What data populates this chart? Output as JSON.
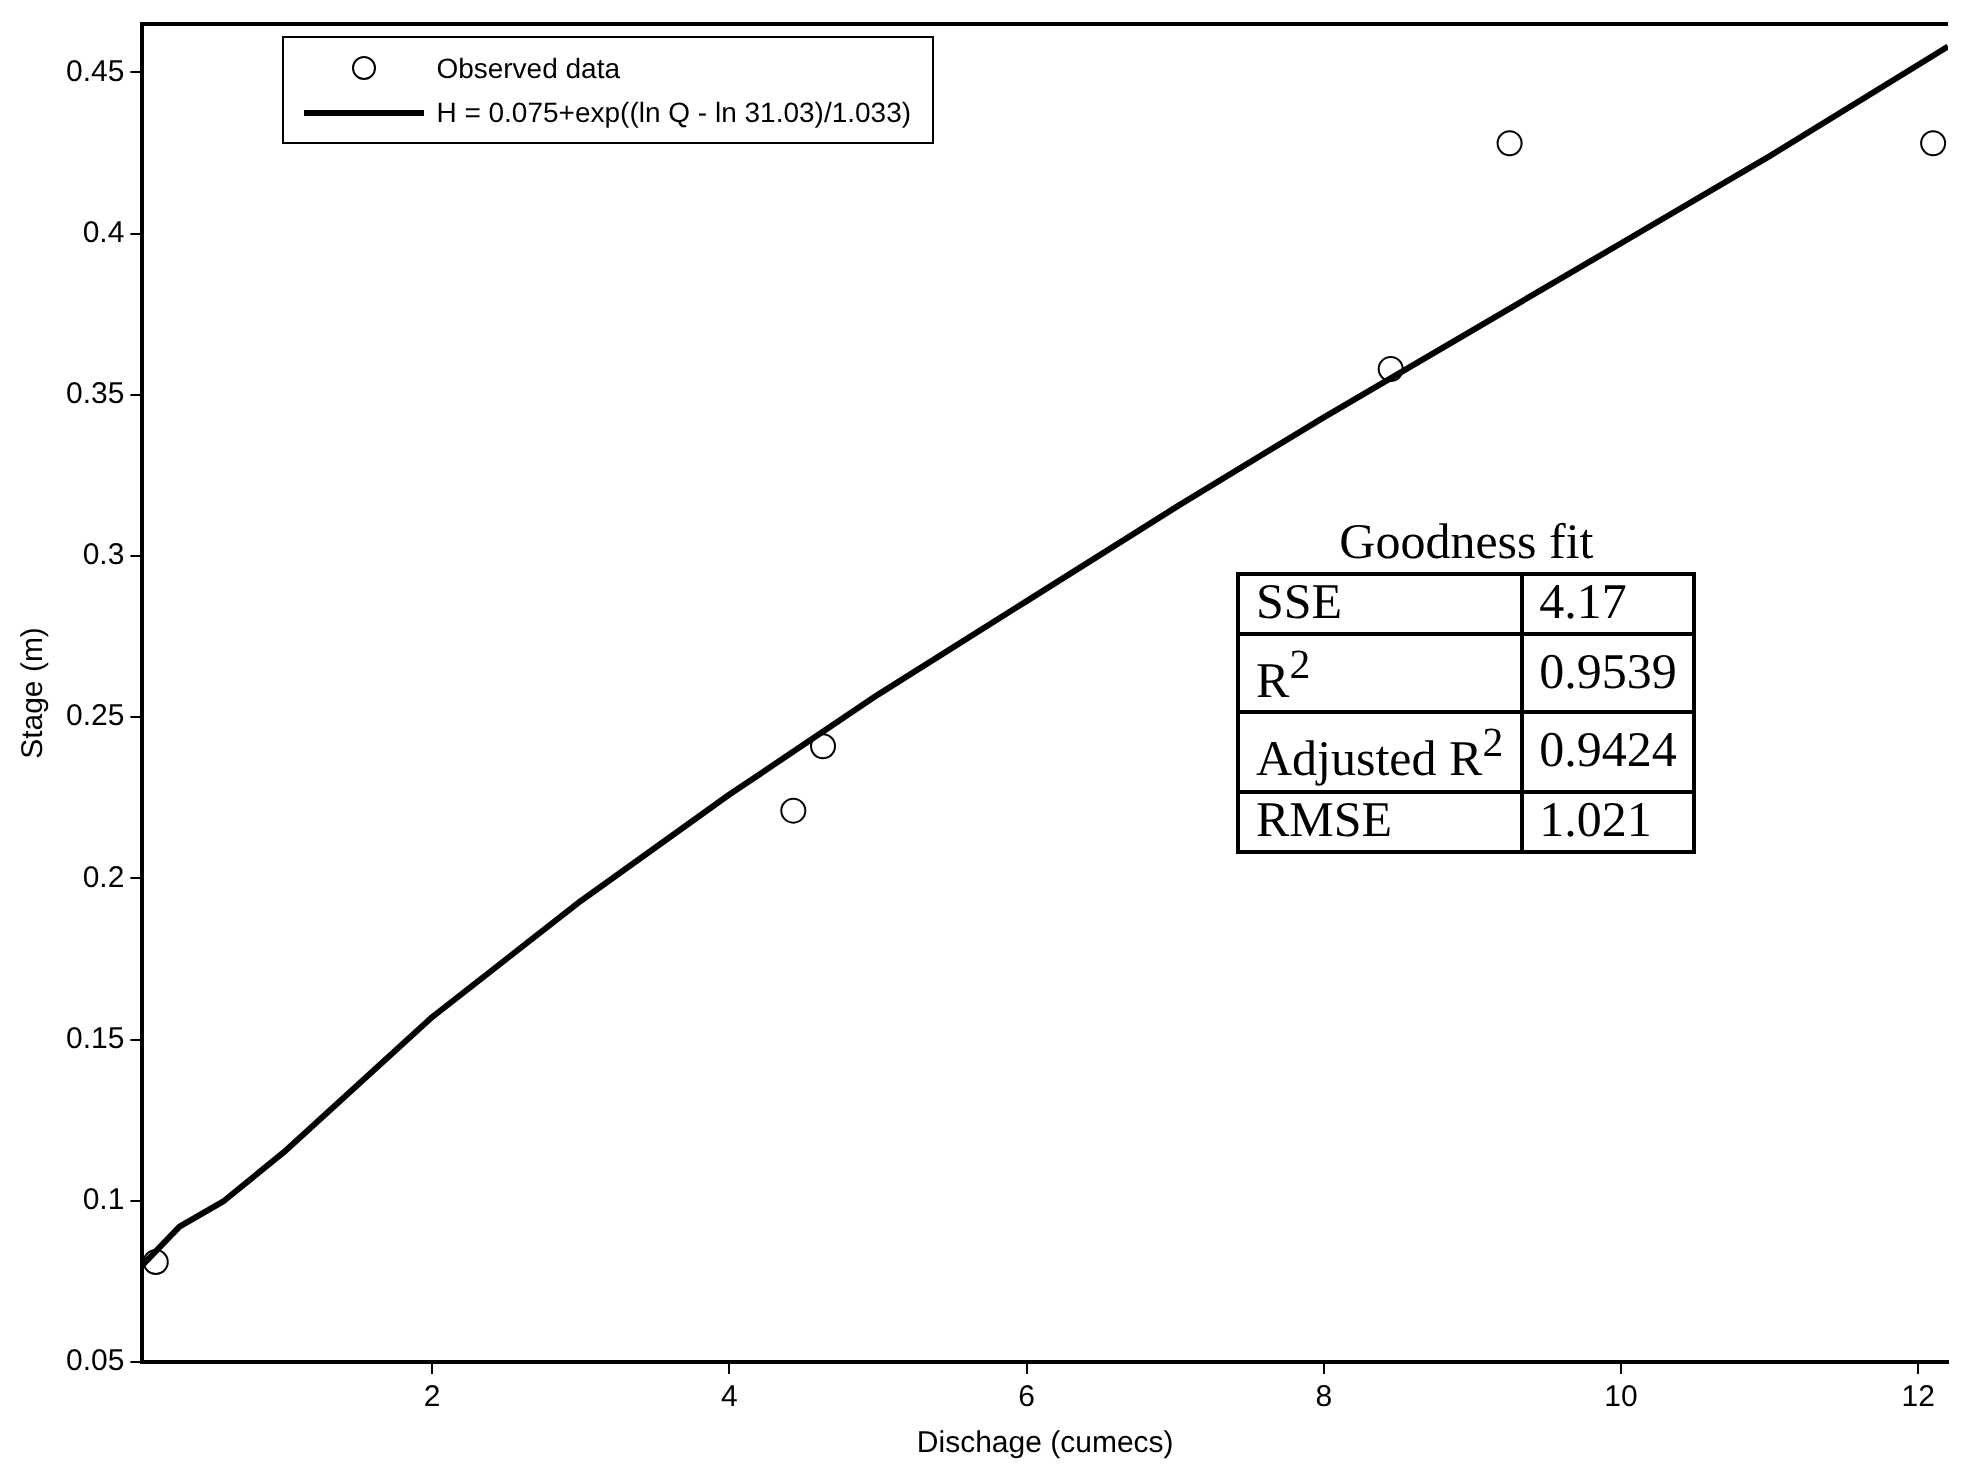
{
  "chart_data": {
    "type": "scatter",
    "xlabel": "Dischage (cumecs)",
    "ylabel": "Stage (m)",
    "xlim": [
      0.05,
      12.2
    ],
    "xticks": [
      2,
      4,
      6,
      8,
      10,
      12
    ],
    "ylim": [
      0.05,
      0.465
    ],
    "yticks": [
      0.05,
      0.1,
      0.15,
      0.2,
      0.25,
      0.3,
      0.35,
      0.4,
      0.45
    ],
    "grid": false,
    "legend": "top left",
    "series": [
      {
        "name": "Observed data",
        "marker": "circle",
        "color": "#000000",
        "x": [
          0.14,
          4.43,
          4.63,
          8.45,
          9.25,
          12.1
        ],
        "values": [
          0.081,
          0.221,
          0.241,
          0.358,
          0.428,
          0.428
        ]
      },
      {
        "name": "H = 0.075+exp((ln Q - ln 31.03)/1.033)",
        "type": "line",
        "marker": "none",
        "line_style": "solid",
        "color": "#000000",
        "x": [
          0.05,
          0.3,
          0.6,
          1,
          2,
          3,
          4,
          5,
          6,
          7,
          8,
          9,
          10,
          11,
          12.2
        ],
        "values": [
          0.08,
          0.092,
          0.1,
          0.115,
          0.157,
          0.193,
          0.226,
          0.257,
          0.286,
          0.315,
          0.343,
          0.37,
          0.397,
          0.424,
          0.458
        ]
      }
    ],
    "annotations": [
      "Goodness fit",
      "SSE",
      "4.17",
      "R$^{2}$",
      "0.9539",
      "Adjusted R$^{2}$",
      "0.9424",
      "RMSE",
      "1.021"
    ]
  }
}
